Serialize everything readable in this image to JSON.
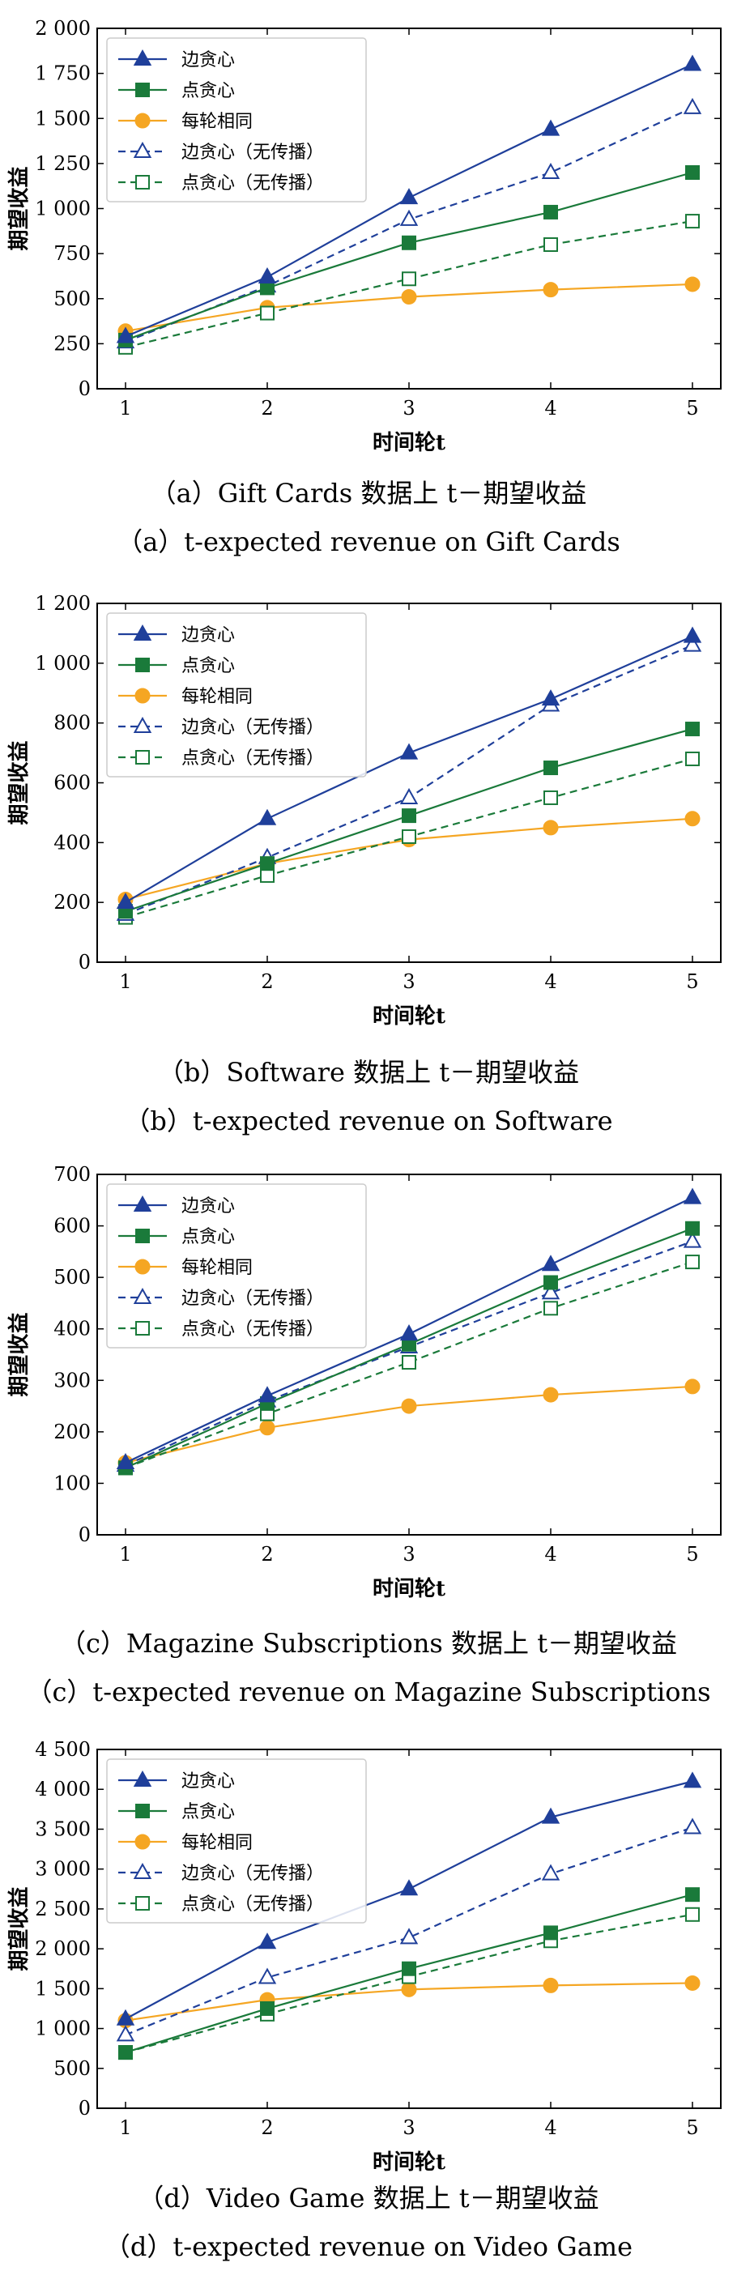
{
  "styles": {
    "edge_greedy": {
      "color": "#1f3f9a",
      "dash": false,
      "marker": "triangle",
      "filled": true
    },
    "point_greedy": {
      "color": "#1a7a3a",
      "dash": false,
      "marker": "square",
      "filled": true
    },
    "uniform": {
      "color": "#f5a623",
      "dash": false,
      "marker": "circle",
      "filled": true
    },
    "edge_greedy_np": {
      "color": "#1f3f9a",
      "dash": true,
      "marker": "triangle",
      "filled": false
    },
    "point_greedy_np": {
      "color": "#1a7a3a",
      "dash": true,
      "marker": "square",
      "filled": false
    }
  },
  "chart_data": [
    {
      "type": "line",
      "caption_cn": "（a）Gift Cards 数据上 t－期望收益",
      "caption_en": "（a）t-expected revenue on Gift Cards",
      "xlabel": "时间轮t",
      "ylabel": "期望收益",
      "x": [
        1,
        2,
        3,
        4,
        5
      ],
      "xlim": [
        0.8,
        5.2
      ],
      "ylim": [
        0,
        2000
      ],
      "yticks": [
        0,
        250,
        500,
        750,
        1000,
        1250,
        1500,
        1750,
        2000
      ],
      "ytick_labels": [
        "0",
        "250",
        "500",
        "750",
        "1 000",
        "1 250",
        "1 500",
        "1 750",
        "2 000"
      ],
      "legend_position": "top-left",
      "series": [
        {
          "name": "边贪心",
          "style": "edge_greedy",
          "values": [
            290,
            620,
            1060,
            1440,
            1800
          ]
        },
        {
          "name": "点贪心",
          "style": "point_greedy",
          "values": [
            270,
            560,
            810,
            980,
            1200
          ]
        },
        {
          "name": "每轮相同",
          "style": "uniform",
          "values": [
            320,
            450,
            510,
            550,
            580
          ]
        },
        {
          "name": "边贪心（无传播）",
          "style": "edge_greedy_np",
          "values": [
            260,
            570,
            940,
            1200,
            1560
          ]
        },
        {
          "name": "点贪心（无传播）",
          "style": "point_greedy_np",
          "values": [
            230,
            420,
            610,
            800,
            930
          ]
        }
      ]
    },
    {
      "type": "line",
      "caption_cn": "（b）Software 数据上 t－期望收益",
      "caption_en": "（b）t-expected revenue on Software",
      "xlabel": "时间轮t",
      "ylabel": "期望收益",
      "x": [
        1,
        2,
        3,
        4,
        5
      ],
      "xlim": [
        0.8,
        5.2
      ],
      "ylim": [
        0,
        1200
      ],
      "yticks": [
        0,
        200,
        400,
        600,
        800,
        1000,
        1200
      ],
      "ytick_labels": [
        "0",
        "200",
        "400",
        "600",
        "800",
        "1 000",
        "1 200"
      ],
      "legend_position": "top-left",
      "series": [
        {
          "name": "边贪心",
          "style": "edge_greedy",
          "values": [
            200,
            480,
            700,
            880,
            1090
          ]
        },
        {
          "name": "点贪心",
          "style": "point_greedy",
          "values": [
            170,
            330,
            490,
            650,
            780
          ]
        },
        {
          "name": "每轮相同",
          "style": "uniform",
          "values": [
            210,
            330,
            410,
            450,
            480
          ]
        },
        {
          "name": "边贪心（无传播）",
          "style": "edge_greedy_np",
          "values": [
            160,
            350,
            550,
            860,
            1060
          ]
        },
        {
          "name": "点贪心（无传播）",
          "style": "point_greedy_np",
          "values": [
            150,
            290,
            420,
            550,
            680
          ]
        }
      ]
    },
    {
      "type": "line",
      "caption_cn": "（c）Magazine Subscriptions 数据上 t－期望收益",
      "caption_en": "（c）t-expected revenue on Magazine Subscriptions",
      "xlabel": "时间轮t",
      "ylabel": "期望收益",
      "x": [
        1,
        2,
        3,
        4,
        5
      ],
      "xlim": [
        0.8,
        5.2
      ],
      "ylim": [
        0,
        700
      ],
      "yticks": [
        0,
        100,
        200,
        300,
        400,
        500,
        600,
        700
      ],
      "ytick_labels": [
        "0",
        "100",
        "200",
        "300",
        "400",
        "500",
        "600",
        "700"
      ],
      "legend_position": "top-left",
      "series": [
        {
          "name": "边贪心",
          "style": "edge_greedy",
          "values": [
            140,
            270,
            390,
            525,
            655
          ]
        },
        {
          "name": "点贪心",
          "style": "point_greedy",
          "values": [
            130,
            255,
            370,
            490,
            595
          ]
        },
        {
          "name": "每轮相同",
          "style": "uniform",
          "values": [
            140,
            208,
            250,
            272,
            288
          ]
        },
        {
          "name": "边贪心（无传播）",
          "style": "edge_greedy_np",
          "values": [
            135,
            260,
            365,
            470,
            570
          ]
        },
        {
          "name": "点贪心（无传播）",
          "style": "point_greedy_np",
          "values": [
            130,
            235,
            335,
            440,
            530
          ]
        }
      ]
    },
    {
      "type": "line",
      "caption_cn": "（d）Video Game 数据上 t－期望收益",
      "caption_en": "（d）t-expected revenue on Video Game",
      "xlabel": "时间轮t",
      "ylabel": "期望收益",
      "x": [
        1,
        2,
        3,
        4,
        5
      ],
      "xlim": [
        0.8,
        5.2
      ],
      "ylim": [
        0,
        4500
      ],
      "yticks": [
        0,
        500,
        1000,
        1500,
        2000,
        2500,
        3000,
        3500,
        4000,
        4500
      ],
      "ytick_labels": [
        "0",
        "500",
        "1 000",
        "1 500",
        "2 000",
        "2 500",
        "3 000",
        "3 500",
        "4 000",
        "4 500"
      ],
      "legend_position": "top-left",
      "series": [
        {
          "name": "边贪心",
          "style": "edge_greedy",
          "values": [
            1120,
            2080,
            2750,
            3650,
            4100
          ]
        },
        {
          "name": "点贪心",
          "style": "point_greedy",
          "values": [
            700,
            1250,
            1750,
            2200,
            2680
          ]
        },
        {
          "name": "每轮相同",
          "style": "uniform",
          "values": [
            1100,
            1360,
            1490,
            1540,
            1570
          ]
        },
        {
          "name": "边贪心（无传播）",
          "style": "edge_greedy_np",
          "values": [
            920,
            1640,
            2140,
            2940,
            3520
          ]
        },
        {
          "name": "点贪心（无传播）",
          "style": "point_greedy_np",
          "values": [
            700,
            1180,
            1650,
            2100,
            2430
          ]
        }
      ]
    }
  ]
}
